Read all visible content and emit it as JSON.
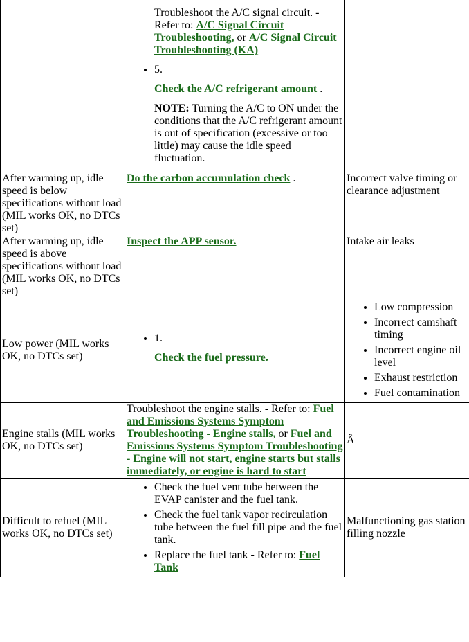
{
  "row0": {
    "step4_text": "Troubleshoot the A/C signal circuit. - Refer to: ",
    "link4a": "A/C Signal Circuit Troubleshooting,",
    "or": " or ",
    "link4b": "A/C Signal Circuit Troubleshooting (KA)",
    "step5_num": "5.",
    "link5": "Check the A/C refrigerant amount",
    "step5_dot": " .",
    "note_label": "NOTE:",
    "note_text": " Turning the A/C to ON under the conditions that the A/C refrigerant amount is out of specification (excessive or too little) may cause the idle speed fluctuation."
  },
  "row1": {
    "symptom": "After warming up, idle speed is below specifications without load (MIL works OK, no DTCs set)",
    "link": "Do the carbon accumulation check",
    "dot": " .",
    "remedy": "Incorrect valve timing or clearance adjustment"
  },
  "row2": {
    "symptom": "After warming up, idle speed is above specifications without load (MIL works OK, no DTCs set)",
    "link": "Inspect the APP sensor.",
    "remedy": "Intake air leaks"
  },
  "row3": {
    "symptom": "Low power (MIL works OK, no DTCs set)",
    "step1_num": "1.",
    "link": "Check the fuel pressure.",
    "rem1": "Low compression",
    "rem2": "Incorrect camshaft timing",
    "rem3": "Incorrect engine oil level",
    "rem4": "Exhaust restriction",
    "rem5": "Fuel contamination"
  },
  "row4": {
    "symptom": "Engine stalls (MIL works OK, no DTCs set)",
    "pre": "Troubleshoot the engine stalls. - Refer to: ",
    "link1": "Fuel and Emissions Systems Symptom Troubleshooting - Engine stalls,",
    "or": " or ",
    "link2": "Fuel and Emissions Systems Symptom Troubleshooting - Engine will not start, engine starts but stalls immediately, or engine is hard to start",
    "remedy": "Â"
  },
  "row5": {
    "symptom": "Difficult to refuel (MIL works OK, no DTCs set)",
    "b1": "Check the fuel vent tube between the EVAP canister and the fuel tank.",
    "b2": "Check the fuel tank vapor recirculation tube between the fuel fill pipe and the fuel tank.",
    "b3_pre": "Replace the fuel tank - Refer to: ",
    "b3_link": "Fuel Tank",
    "remedy": "Malfunctioning gas station filling nozzle"
  }
}
